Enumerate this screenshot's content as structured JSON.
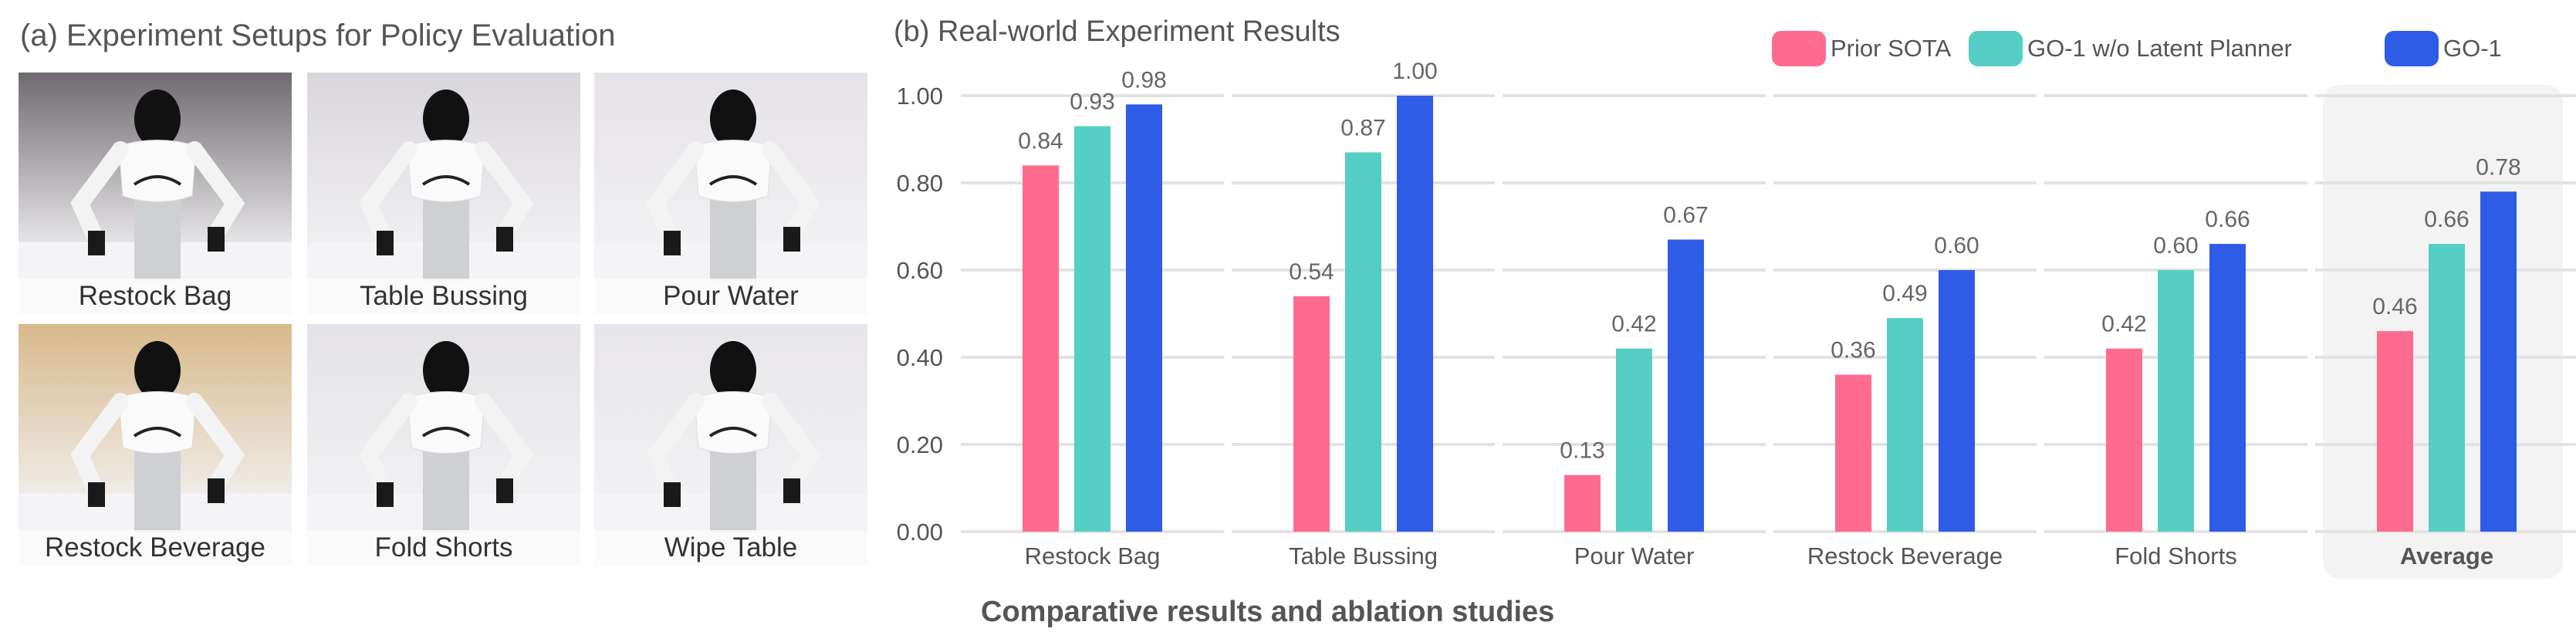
{
  "panel_a": {
    "title": "(a) Experiment Setups for Policy Evaluation",
    "photos": [
      {
        "label": "Restock Bag",
        "bg": "#6f6a70"
      },
      {
        "label": "Table Bussing",
        "bg": "#d9d6dc"
      },
      {
        "label": "Pour Water",
        "bg": "#e6e3e8"
      },
      {
        "label": "Restock Beverage",
        "bg": "#d8b98a"
      },
      {
        "label": "Fold Shorts",
        "bg": "#e4e2e6"
      },
      {
        "label": "Wipe Table",
        "bg": "#e8e6ea"
      }
    ]
  },
  "panel_b": {
    "title": "(b) Real-world Experiment Results",
    "caption": "Comparative results and ablation studies"
  },
  "chart_data": {
    "type": "bar",
    "title": "(b) Real-world Experiment Results",
    "xlabel": "Comparative results and ablation studies",
    "ylabel": "",
    "ylim": [
      0,
      1.0
    ],
    "yticks": [
      "0.00",
      "0.20",
      "0.40",
      "0.60",
      "0.80",
      "1.00"
    ],
    "grid": true,
    "legend_position": "top-right",
    "categories": [
      "Restock Bag",
      "Table Bussing",
      "Pour Water",
      "Restock Beverage",
      "Fold Shorts",
      "Average"
    ],
    "highlighted_category": "Average",
    "series": [
      {
        "name": "Prior SOTA",
        "color": "#ff6b8f",
        "values": [
          0.84,
          0.54,
          0.13,
          0.36,
          0.42,
          0.46
        ]
      },
      {
        "name": "GO-1 w/o Latent Planner",
        "color": "#55cfc5",
        "values": [
          0.93,
          0.87,
          0.42,
          0.49,
          0.6,
          0.66
        ]
      },
      {
        "name": "GO-1",
        "color": "#2f5ce6",
        "values": [
          0.98,
          1.0,
          0.67,
          0.6,
          0.66,
          0.78
        ]
      }
    ]
  }
}
